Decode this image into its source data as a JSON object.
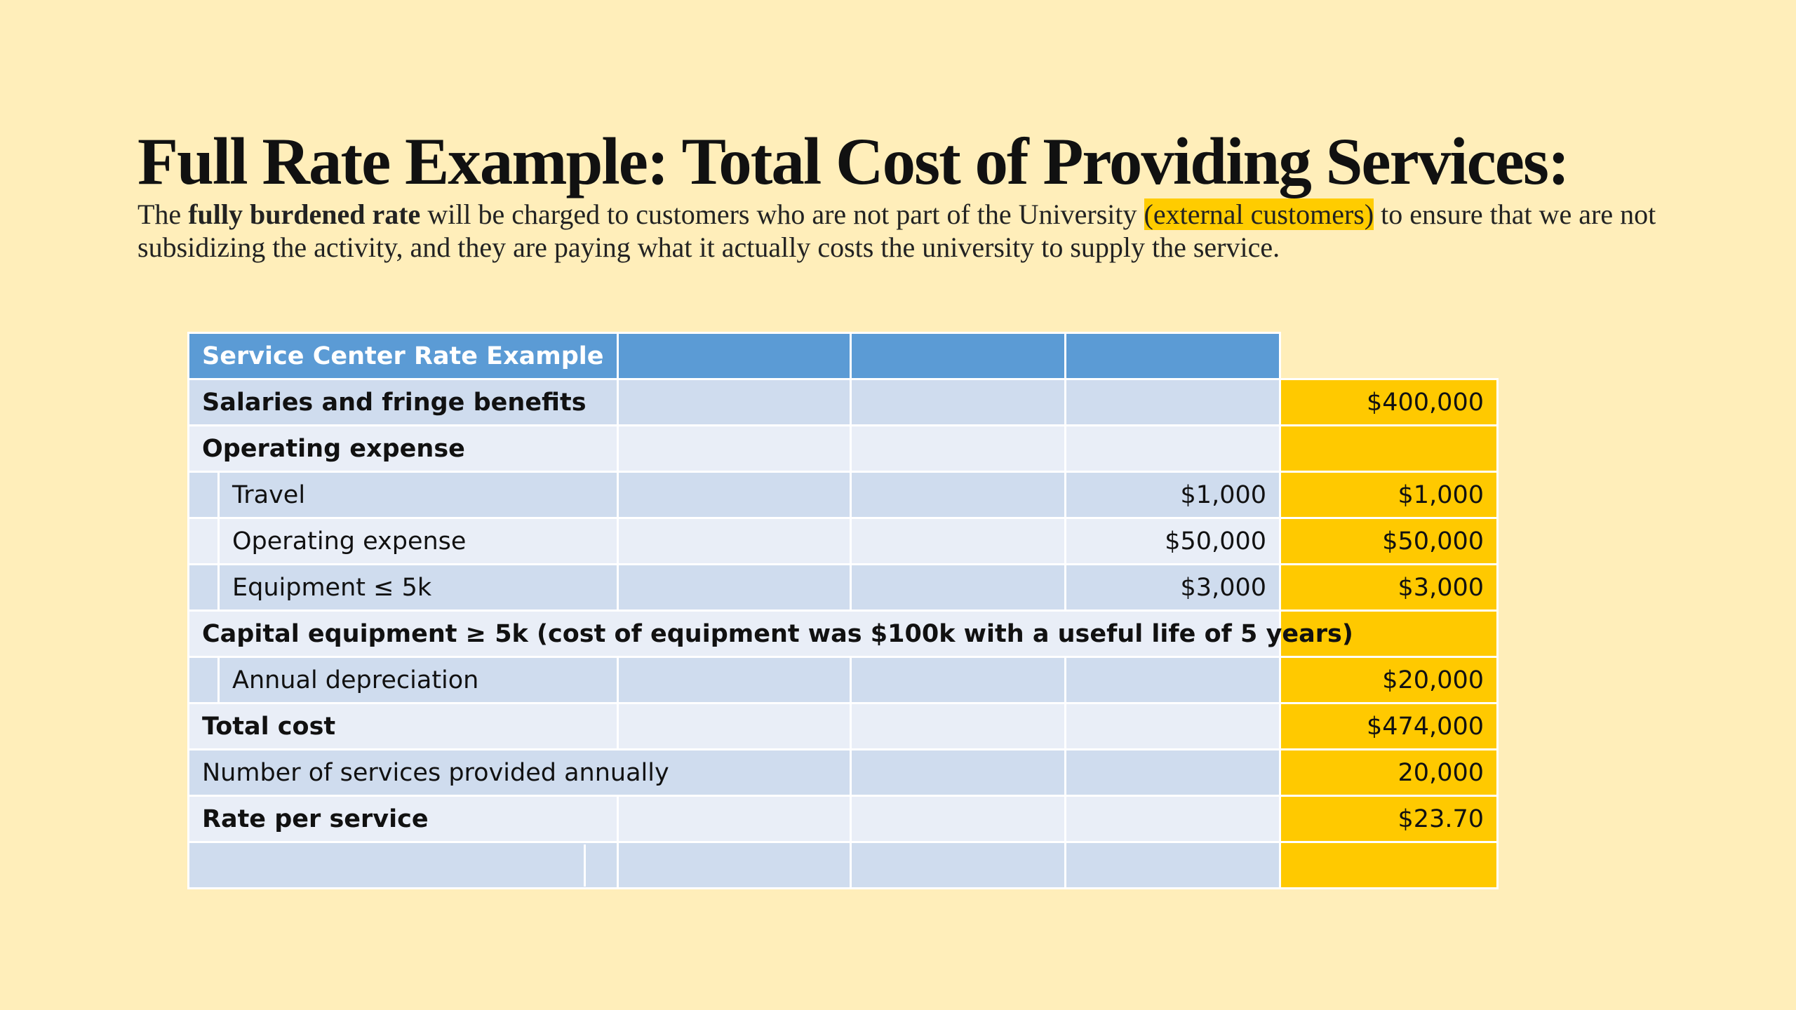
{
  "slide": {
    "title": "Full Rate Example: Total Cost of Providing Services:",
    "subtitle": {
      "part1": "The ",
      "bold": "fully burdened rate",
      "part2": " will be charged to customers who are not part of the University ",
      "highlight": "(external customers)",
      "part3": " to ensure that we are not subsidizing the activity, and they are paying what it actually costs the university to supply the service."
    }
  },
  "table": {
    "header": "Service Center Rate Example",
    "rows": [
      {
        "label": "Salaries and fringe benefits",
        "sub": "",
        "total": "$400,000"
      },
      {
        "label": "Operating expense",
        "sub": "",
        "total": ""
      },
      {
        "label": "Travel",
        "sub": "$1,000",
        "total": "$1,000"
      },
      {
        "label": "Operating expense",
        "sub": "$50,000",
        "total": "$50,000"
      },
      {
        "label": "Equipment ≤ 5k",
        "sub": "$3,000",
        "total": "$3,000"
      },
      {
        "label": "Capital equipment ≥ 5k (cost of equipment was $100k with a useful life of 5 years)",
        "sub": "",
        "total": ""
      },
      {
        "label": "Annual depreciation",
        "sub": "",
        "total": "$20,000"
      },
      {
        "label": "Total cost",
        "sub": "",
        "total": "$474,000"
      },
      {
        "label": "Number of services provided annually",
        "sub": "",
        "total": "20,000"
      },
      {
        "label": "Rate per service",
        "sub": "",
        "total": "$23.70"
      }
    ]
  },
  "colors": {
    "background": "#FFEEBA",
    "header_blue": "#5B9BD5",
    "row_dark": "#CFDCEE",
    "row_light": "#E9EEF7",
    "highlight_gold": "#FFC900"
  }
}
